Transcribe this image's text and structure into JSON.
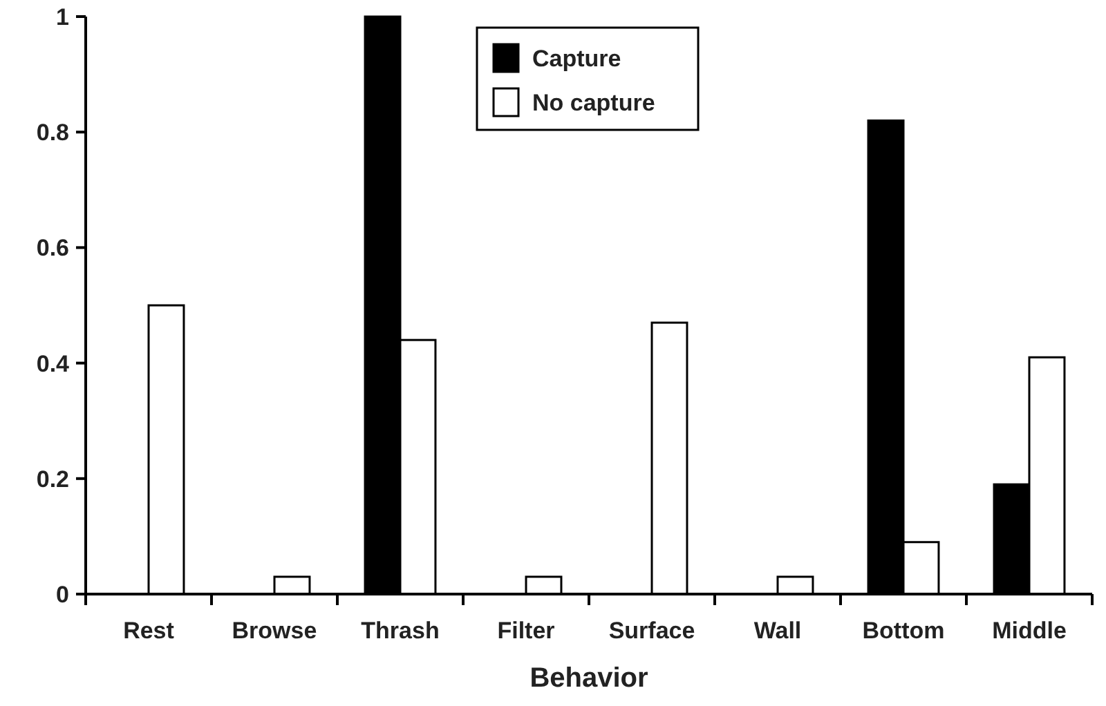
{
  "chart_data": {
    "type": "bar",
    "xlabel": "Behavior",
    "categories": [
      "Rest",
      "Browse",
      "Thrash",
      "Filter",
      "Surface",
      "Wall",
      "Bottom",
      "Middle"
    ],
    "series": [
      {
        "name": "Capture",
        "color": "#000000",
        "values": [
          0,
          0,
          1,
          0,
          0,
          0,
          0.82,
          0.19
        ]
      },
      {
        "name": "No capture",
        "color": "#ffffff",
        "values": [
          0.5,
          0.03,
          0.44,
          0.03,
          0.47,
          0.03,
          0.09,
          0.41
        ]
      }
    ],
    "ylim": [
      0,
      1
    ],
    "yticks": [
      0,
      {
        "value": 0.2,
        "label": "0.2"
      },
      {
        "value": 0.4,
        "label": "0.4"
      },
      {
        "value": 0.6,
        "label": "0.6"
      },
      {
        "value": 0.8,
        "label": "0.8"
      },
      1
    ],
    "legend": "top",
    "grid": false
  }
}
